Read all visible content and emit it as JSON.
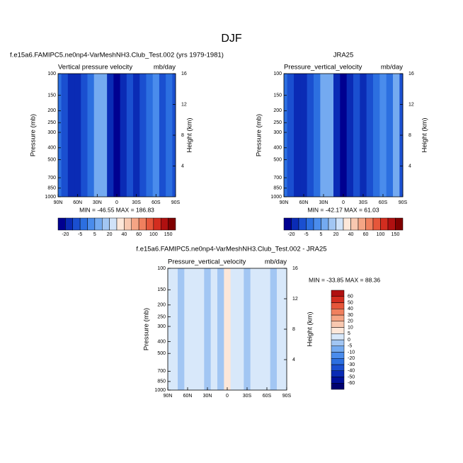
{
  "title": "DJF",
  "chart_data": [
    {
      "type": "contour",
      "title": "f.e15a6.FAMIPC5.ne0np4-VarMeshNH3.Club_Test.002 (yrs 1979-1981)",
      "subtitle": "Vertical pressure velocity",
      "units": "mb/day",
      "ylabel": "Pressure (mb)",
      "y2label": "Height (km)",
      "annotation": "MIN = -46.55  MAX = 186.83",
      "x": [
        90,
        80,
        70,
        60,
        50,
        40,
        30,
        20,
        10,
        0,
        -10,
        -20,
        -30,
        -40,
        -50,
        -60,
        -70,
        -80,
        -90
      ],
      "values": [
        -5,
        -10,
        -15,
        -20,
        -10,
        -5,
        5,
        10,
        -15,
        -30,
        -20,
        -10,
        -20,
        -10,
        -5,
        2,
        -10,
        -5,
        -10
      ],
      "xlim": [
        90,
        -90
      ],
      "xticks": [
        {
          "value": 90,
          "label": "90N"
        },
        {
          "value": 60,
          "label": "60N"
        },
        {
          "value": 30,
          "label": "30N"
        },
        0,
        {
          "value": -30,
          "label": "30S"
        },
        {
          "value": -60,
          "label": "60S"
        },
        {
          "value": -90,
          "label": "90S"
        }
      ],
      "ylim": [
        1000,
        100
      ],
      "log_y": true,
      "yticks": [
        100,
        150,
        200,
        250,
        300,
        400,
        500,
        700,
        850,
        1000
      ],
      "y2lim": [
        0,
        16
      ],
      "y2ticks": [
        4,
        8,
        12,
        16
      ],
      "colorbar": {
        "orientation": "horizontal",
        "ticks": [
          -20,
          -5,
          5,
          20,
          40,
          60,
          100,
          150
        ],
        "colors": [
          "#000090",
          "#0a2bb5",
          "#1a4fd0",
          "#2c6fe0",
          "#4a8cec",
          "#74aaf0",
          "#a2c6f3",
          "#d0e2f8",
          "#fde7d9",
          "#f8c8b0",
          "#f5a585",
          "#f0805e",
          "#e6563a",
          "#d32d1f",
          "#b01010",
          "#7f0000"
        ]
      }
    },
    {
      "type": "contour",
      "title": "JRA25",
      "subtitle": "Pressure_vertical_velocity",
      "units": "mb/day",
      "ylabel": "Pressure (mb)",
      "y2label": "Height (km)",
      "annotation": "MIN = -42.17  MAX =  61.03",
      "x": [
        90,
        80,
        70,
        60,
        50,
        40,
        30,
        20,
        10,
        0,
        -10,
        -20,
        -30,
        -40,
        -50,
        -60,
        -70,
        -80,
        -90
      ],
      "values": [
        -5,
        -10,
        -15,
        -20,
        -10,
        -5,
        5,
        10,
        -15,
        -30,
        -20,
        -10,
        -20,
        -10,
        -5,
        2,
        -5,
        5,
        -10
      ],
      "xlim": [
        90,
        -90
      ],
      "xticks": [
        {
          "value": 90,
          "label": "90N"
        },
        {
          "value": 60,
          "label": "60N"
        },
        {
          "value": 30,
          "label": "30N"
        },
        0,
        {
          "value": -30,
          "label": "30S"
        },
        {
          "value": -60,
          "label": "60S"
        },
        {
          "value": -90,
          "label": "90S"
        }
      ],
      "ylim": [
        1000,
        100
      ],
      "log_y": true,
      "yticks": [
        100,
        150,
        200,
        250,
        300,
        400,
        500,
        700,
        850,
        1000
      ],
      "y2lim": [
        0,
        16
      ],
      "y2ticks": [
        4,
        8,
        12,
        16
      ],
      "colorbar": {
        "orientation": "horizontal",
        "ticks": [
          -20,
          -5,
          5,
          20,
          40,
          60,
          100,
          150
        ],
        "colors": [
          "#000090",
          "#0a2bb5",
          "#1a4fd0",
          "#2c6fe0",
          "#4a8cec",
          "#74aaf0",
          "#a2c6f3",
          "#d0e2f8",
          "#fde7d9",
          "#f8c8b0",
          "#f5a585",
          "#f0805e",
          "#e6563a",
          "#d32d1f",
          "#b01010",
          "#7f0000"
        ]
      }
    },
    {
      "type": "contour",
      "title": "f.e15a6.FAMIPC5.ne0np4-VarMeshNH3.Club_Test.002 - JRA25",
      "subtitle": "Pressure_vertical_velocity",
      "units": "mb/day",
      "ylabel": "Pressure (mb)",
      "y2label": "Height (km)",
      "annotation": "MIN = -33.85  MAX =  88.36",
      "x": [
        90,
        80,
        70,
        60,
        50,
        40,
        30,
        20,
        10,
        0,
        -10,
        -20,
        -30,
        -40,
        -50,
        -60,
        -70,
        -80,
        -90
      ],
      "values": [
        0,
        2,
        -2,
        0,
        3,
        0,
        -2,
        2,
        -2,
        5,
        2,
        0,
        -2,
        2,
        3,
        0,
        -2,
        0,
        3
      ],
      "xlim": [
        90,
        -90
      ],
      "xticks": [
        {
          "value": 90,
          "label": "90N"
        },
        {
          "value": 60,
          "label": "60N"
        },
        {
          "value": 30,
          "label": "30N"
        },
        0,
        {
          "value": -30,
          "label": "30S"
        },
        {
          "value": -60,
          "label": "60S"
        },
        {
          "value": -90,
          "label": "90S"
        }
      ],
      "ylim": [
        1000,
        100
      ],
      "log_y": true,
      "yticks": [
        100,
        150,
        200,
        250,
        300,
        400,
        500,
        700,
        850,
        1000
      ],
      "y2lim": [
        0,
        16
      ],
      "y2ticks": [
        4,
        8,
        12,
        16
      ],
      "colorbar": {
        "orientation": "vertical",
        "ticks": [
          -60,
          -50,
          -40,
          -30,
          -20,
          -10,
          -5,
          0,
          5,
          10,
          20,
          30,
          40,
          50,
          60
        ],
        "colors": [
          "#000070",
          "#00109a",
          "#0a2bb5",
          "#1a4fd0",
          "#2c6fe0",
          "#4a8cec",
          "#74aaf0",
          "#a2c6f3",
          "#d8e8fa",
          "#fde7d9",
          "#f8c8b0",
          "#f5a585",
          "#f0805e",
          "#e6563a",
          "#d32d1f",
          "#b01010"
        ]
      }
    }
  ]
}
